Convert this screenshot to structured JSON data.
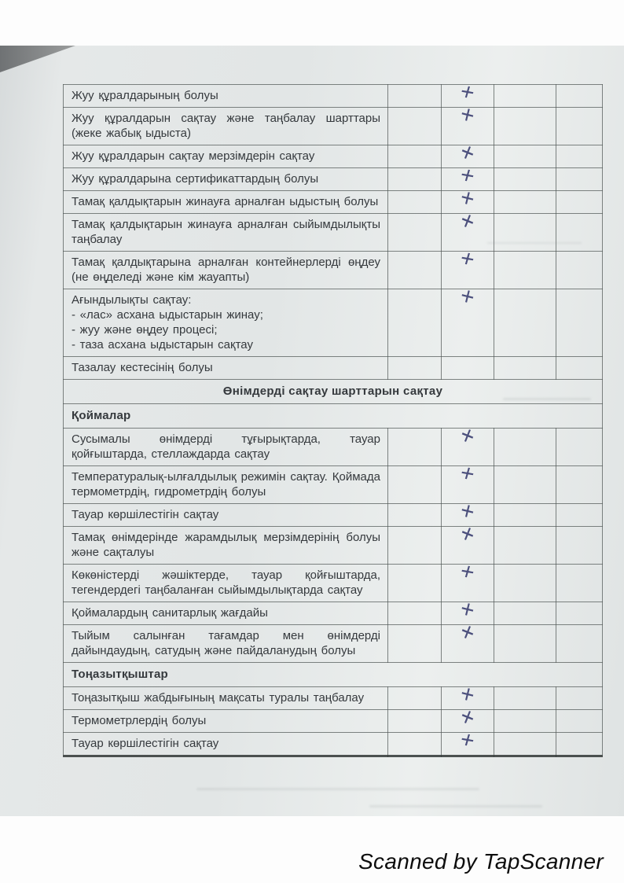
{
  "document": {
    "kind": "scanned-inspection-checklist",
    "watermark": "Scanned by TapScanner",
    "ink_color": "#4b4f7c",
    "paper_color": "#e4e7e6"
  },
  "checklist": {
    "mark_column": 1,
    "rows": [
      {
        "type": "item",
        "text": "Жуу құралдарының болуы",
        "mark": "+"
      },
      {
        "type": "item",
        "text": "Жуу құралдарын сақтау және таңбалау шарттары (жеке жабық ыдыста)",
        "mark": "+"
      },
      {
        "type": "item",
        "text": "Жуу құралдарын сақтау мерзімдерін сақтау",
        "mark": "+"
      },
      {
        "type": "item",
        "text": "Жуу құралдарына сертификаттардың болуы",
        "mark": "+"
      },
      {
        "type": "item",
        "text": "Тамақ қалдықтарын жинауға арналған ыдыстың болуы",
        "mark": "+"
      },
      {
        "type": "item",
        "text": "Тамақ қалдықтарын жинауға арналған сыйымдылықты таңбалау",
        "mark": "+"
      },
      {
        "type": "item",
        "text": "Тамақ қалдықтарына арналған контейнерлерді өңдеу (не өңделеді және кім жауапты)",
        "mark": "+"
      },
      {
        "type": "item",
        "lines": [
          "Ағындылықты сақтау:",
          "- «лас» асхана ыдыстарын жинау;",
          "- жуу және өңдеу процесі;",
          "- таза асхана ыдыстарын сақтау"
        ],
        "mark": "+"
      },
      {
        "type": "item",
        "text": "Тазалау кестесінің болуы",
        "mark": ""
      },
      {
        "type": "section",
        "text": "Өнімдерді сақтау шарттарын сақтау"
      },
      {
        "type": "subheader",
        "text": "Қоймалар"
      },
      {
        "type": "item",
        "text": "Сусымалы өнімдерді тұғырықтарда, тауар қойғыштарда, стеллаждарда сақтау",
        "mark": "+"
      },
      {
        "type": "item",
        "text": "Температуралық-ылғалдылық режимін сақтау. Қоймада термометрдің, гидрометрдің болуы",
        "mark": "+"
      },
      {
        "type": "item",
        "text": "Тауар көршілестігін сақтау",
        "mark": "+"
      },
      {
        "type": "item",
        "text": "Тамақ өнімдерінде жарамдылық мерзімдерінің болуы және сақталуы",
        "mark": "+"
      },
      {
        "type": "item",
        "text": "Көкөністерді жәшіктерде, тауар қойғыштарда, тегендердегі таңбаланған сыйымдылықтарда сақтау",
        "mark": "+"
      },
      {
        "type": "item",
        "text": "Қоймалардың санитарлық жағдайы",
        "mark": "+"
      },
      {
        "type": "item",
        "text": "Тыйым салынған тағамдар мен өнімдерді дайындаудың, сатудың және пайдаланудың болуы",
        "mark": "+"
      },
      {
        "type": "subheader",
        "text": "Тоңазытқыштар"
      },
      {
        "type": "item",
        "text": "Тоңазытқыш жабдығының мақсаты туралы таңбалау",
        "mark": "+"
      },
      {
        "type": "item",
        "text": "Термометрлердің болуы",
        "mark": "+"
      },
      {
        "type": "item",
        "text": "Тауар көршілестігін сақтау",
        "mark": "+"
      }
    ]
  }
}
